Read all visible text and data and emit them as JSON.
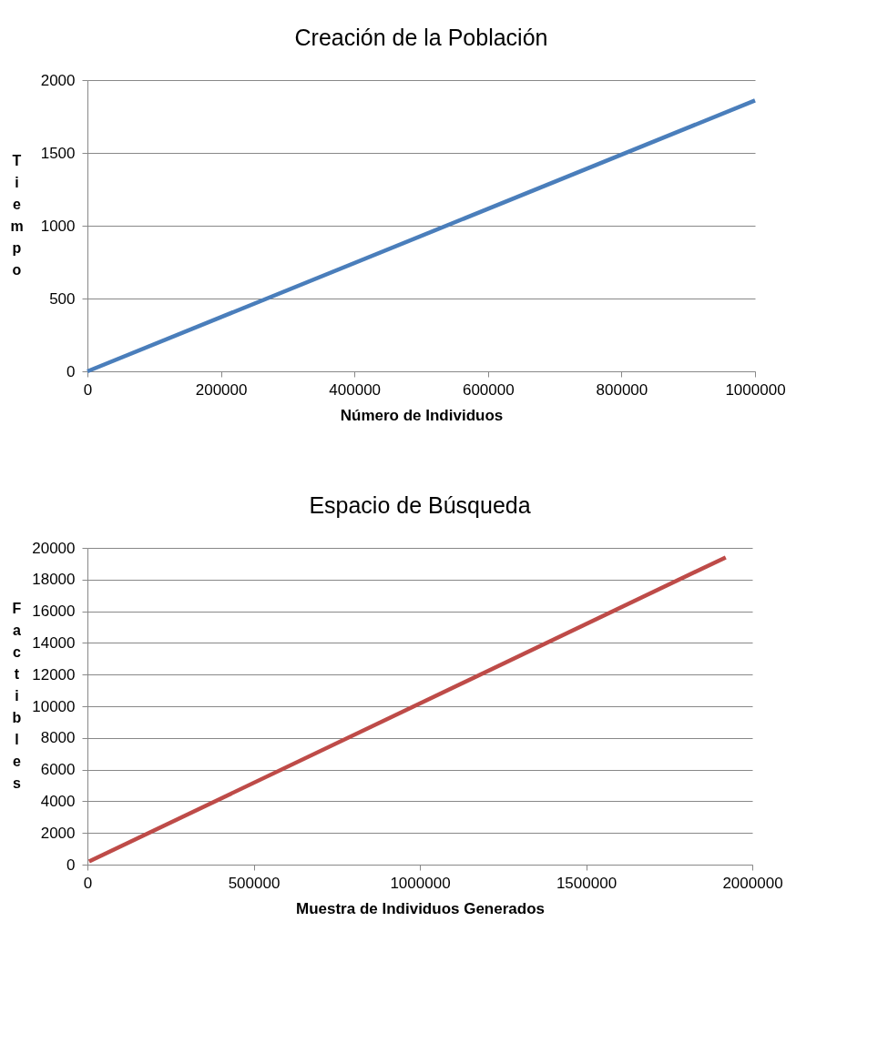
{
  "chart_data": [
    {
      "type": "line",
      "title": "Creación de la Población",
      "xlabel": "Número de Individuos",
      "ylabel": "Tiempo",
      "x": [
        0,
        1000000
      ],
      "series": [
        {
          "color": "#4a7ebb",
          "values": [
            0,
            1860
          ]
        }
      ],
      "xlim": [
        0,
        1000000
      ],
      "xticks": [
        0,
        200000,
        400000,
        600000,
        800000,
        1000000
      ],
      "ylim": [
        0,
        2000
      ],
      "yticks": [
        0,
        500,
        1000,
        1500,
        2000
      ],
      "grid": "y"
    },
    {
      "type": "line",
      "title": "Espacio de Búsqueda",
      "xlabel": "Muestra de Individuos Generados",
      "ylabel": "Factibles",
      "x": [
        5000,
        1920000
      ],
      "series": [
        {
          "color": "#be4b48",
          "values": [
            200,
            19400
          ]
        }
      ],
      "xlim": [
        0,
        2000000
      ],
      "xticks": [
        0,
        500000,
        1000000,
        1500000,
        2000000
      ],
      "ylim": [
        0,
        20000
      ],
      "yticks": [
        0,
        2000,
        4000,
        6000,
        8000,
        10000,
        12000,
        14000,
        16000,
        18000,
        20000
      ],
      "grid": "y"
    }
  ]
}
